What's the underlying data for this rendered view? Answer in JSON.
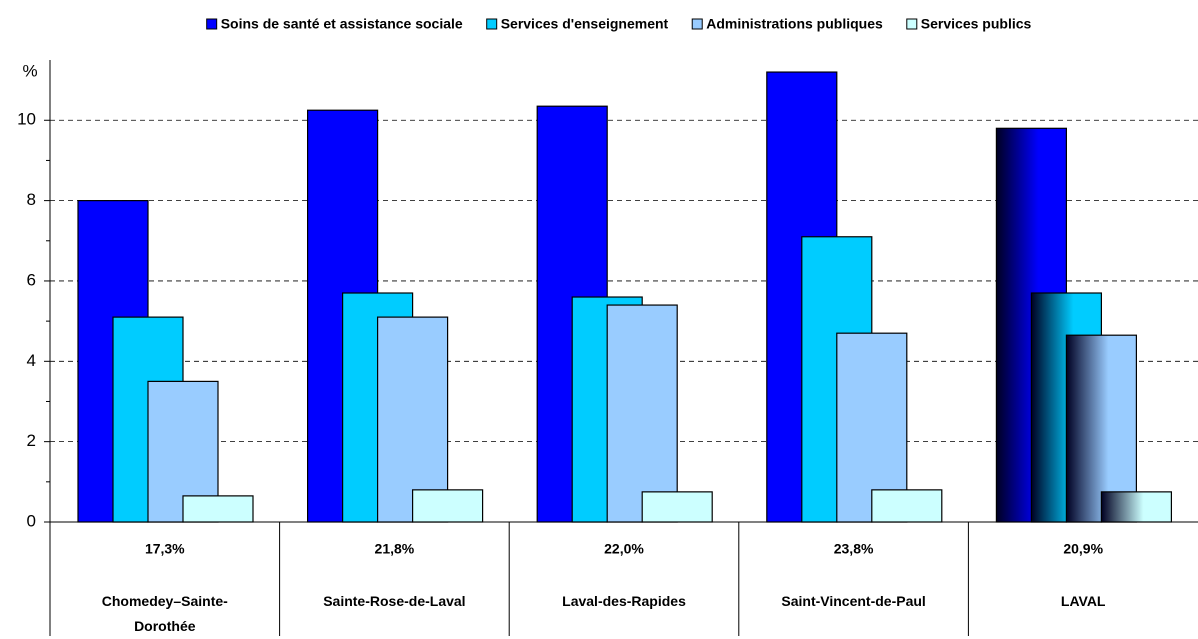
{
  "chart_data": {
    "type": "bar",
    "ylabel": "%",
    "categories": [
      "Chomedey–Sainte-Dorothée",
      "Sainte-Rose-de-Laval",
      "Laval-des-Rapides",
      "Saint-Vincent-de-Paul",
      "LAVAL"
    ],
    "totals": [
      17.3,
      21.8,
      22.0,
      23.8,
      20.9
    ],
    "total_labels": [
      "17,3%",
      "21,8%",
      "22,0%",
      "23,8%",
      "20,9%"
    ],
    "series": [
      {
        "name": "Soins de santé et assistance sociale",
        "color": "#0000ff",
        "values": [
          8.0,
          10.25,
          10.35,
          11.2,
          9.8
        ]
      },
      {
        "name": "Services d'enseignement",
        "color": "#00ccff",
        "values": [
          5.1,
          5.7,
          5.6,
          7.1,
          5.7
        ]
      },
      {
        "name": "Administrations publiques",
        "color": "#99ccff",
        "values": [
          3.5,
          5.1,
          5.4,
          4.7,
          4.65
        ]
      },
      {
        "name": "Services publics",
        "color": "#ccffff",
        "values": [
          0.65,
          0.8,
          0.75,
          0.8,
          0.75
        ]
      }
    ],
    "ylim": [
      0,
      11.5
    ],
    "yticks": [
      0,
      2,
      4,
      6,
      8,
      10
    ],
    "grid": true
  }
}
